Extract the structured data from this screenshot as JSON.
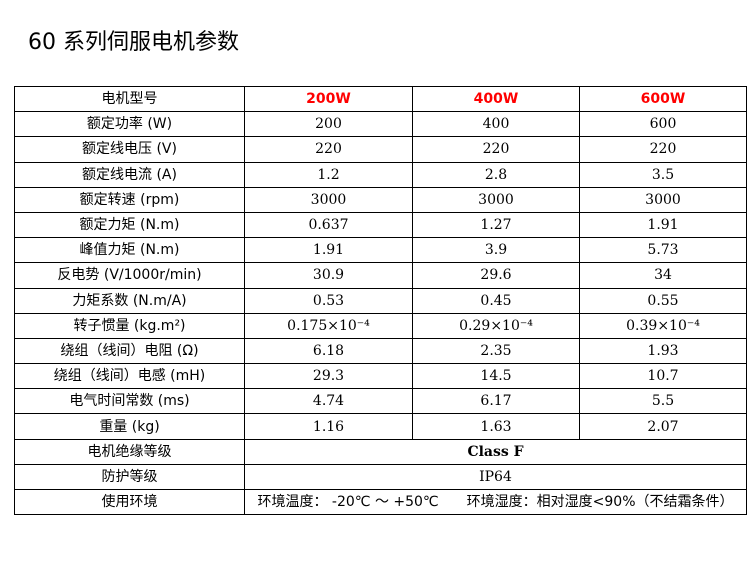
{
  "title": "60 系列伺服电机参数",
  "header": {
    "label": "电机型号",
    "models": [
      "200W",
      "400W",
      "600W"
    ]
  },
  "rows": [
    {
      "label": "额定功率 (W)",
      "values": [
        "200",
        "400",
        "600"
      ]
    },
    {
      "label": "额定线电压 (V)",
      "values": [
        "220",
        "220",
        "220"
      ]
    },
    {
      "label": "额定线电流 (A)",
      "values": [
        "1.2",
        "2.8",
        "3.5"
      ]
    },
    {
      "label": "额定转速 (rpm)",
      "values": [
        "3000",
        "3000",
        "3000"
      ]
    },
    {
      "label": "额定力矩 (N.m)",
      "values": [
        "0.637",
        "1.27",
        "1.91"
      ]
    },
    {
      "label": "峰值力矩 (N.m)",
      "values": [
        "1.91",
        "3.9",
        "5.73"
      ]
    },
    {
      "label": "反电势 (V/1000r/min)",
      "values": [
        "30.9",
        "29.6",
        "34"
      ]
    },
    {
      "label": "力矩系数 (N.m/A)",
      "values": [
        "0.53",
        "0.45",
        "0.55"
      ]
    },
    {
      "label": "转子惯量 (kg.m²)",
      "values": [
        "0.175×10⁻⁴",
        "0.29×10⁻⁴",
        "0.39×10⁻⁴"
      ]
    },
    {
      "label": "绕组（线间）电阻 (Ω)",
      "values": [
        "6.18",
        "2.35",
        "1.93"
      ]
    },
    {
      "label": "绕组（线间）电感 (mH)",
      "values": [
        "29.3",
        "14.5",
        "10.7"
      ]
    },
    {
      "label": "电气时间常数 (ms)",
      "values": [
        "4.74",
        "6.17",
        "5.5"
      ]
    },
    {
      "label": "重量 (kg)",
      "values": [
        "1.16",
        "1.63",
        "2.07"
      ]
    }
  ],
  "insulation": {
    "label": "电机绝缘等级",
    "value": "Class F"
  },
  "protection": {
    "label": "防护等级",
    "value": "IP64"
  },
  "environment": {
    "label": "使用环境",
    "temperature": "环境温度： -20℃ ～ +50℃",
    "humidity": "环境湿度：相对湿度<90%（不结霜条件）"
  }
}
